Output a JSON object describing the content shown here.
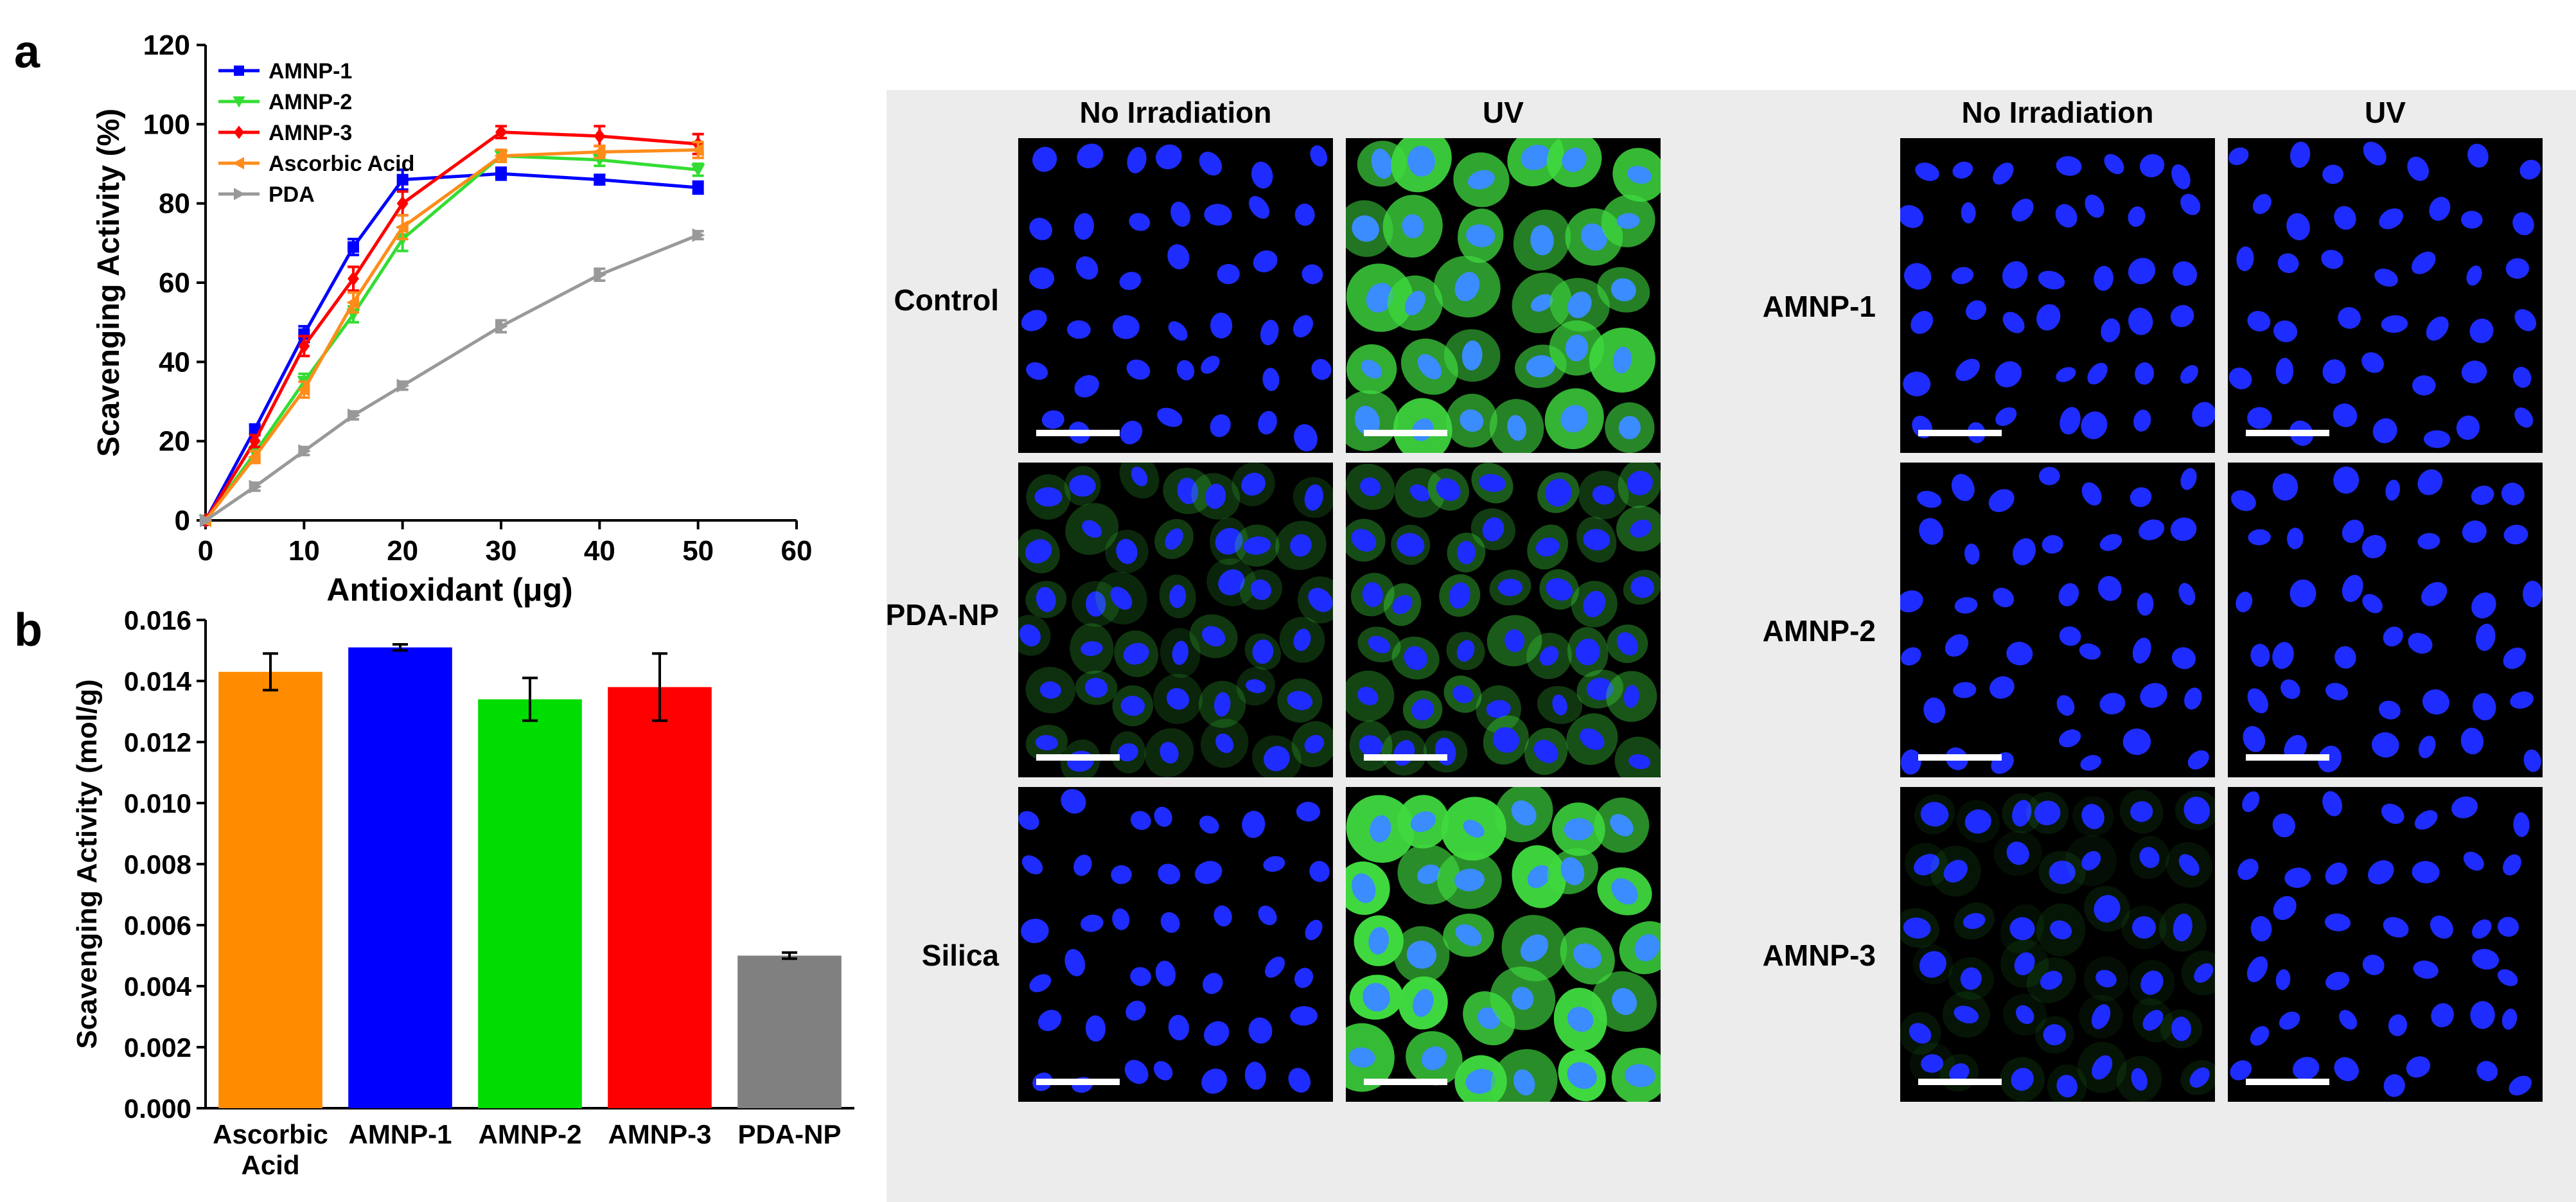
{
  "panel_a_label": "a",
  "panel_b_label": "b",
  "chart_data": [
    {
      "type": "line",
      "xlabel": "Antioxidant (μg)",
      "ylabel": "Scavenging Activity (%)",
      "xlim": [
        0,
        60
      ],
      "ylim": [
        0,
        120
      ],
      "xticks": [
        0,
        10,
        20,
        30,
        40,
        50,
        60
      ],
      "yticks": [
        0,
        20,
        40,
        60,
        80,
        100,
        120
      ],
      "legend_position": "top-left",
      "grid": false,
      "x": [
        0,
        5,
        10,
        15,
        20,
        30,
        40,
        50
      ],
      "series": [
        {
          "name": "AMNP-1",
          "color": "#0000ff",
          "marker": "square",
          "values": [
            0,
            23,
            47,
            69,
            86,
            87.5,
            86,
            84
          ],
          "errors": [
            0,
            1.2,
            2.0,
            2.0,
            2.5,
            1.5,
            1.2,
            1.5
          ]
        },
        {
          "name": "AMNP-2",
          "color": "#33dd33",
          "marker": "triangle-down",
          "values": [
            0,
            17,
            35,
            52,
            71,
            92,
            91,
            88.5
          ],
          "errors": [
            0,
            1.2,
            2.0,
            2.0,
            3.0,
            1.5,
            1.5,
            1.5
          ]
        },
        {
          "name": "AMNP-3",
          "color": "#ff0000",
          "marker": "diamond",
          "values": [
            0,
            20,
            44,
            61,
            80,
            98,
            97,
            95
          ],
          "errors": [
            0,
            1.5,
            2.5,
            3.0,
            3.0,
            1.5,
            2.5,
            2.5
          ]
        },
        {
          "name": "Ascorbic Acid",
          "color": "#ff8c1a",
          "marker": "triangle-left",
          "values": [
            0,
            16,
            33,
            55,
            74,
            92,
            93,
            93.5
          ],
          "errors": [
            0,
            1.5,
            2.0,
            2.5,
            3.0,
            1.5,
            1.5,
            2.0
          ]
        },
        {
          "name": "PDA",
          "color": "#999999",
          "marker": "triangle-right",
          "values": [
            0,
            8.5,
            17.5,
            26.5,
            34,
            49,
            62,
            72
          ],
          "errors": [
            0,
            1.0,
            1.0,
            1.0,
            1.0,
            1.5,
            1.5,
            1.0
          ]
        }
      ]
    },
    {
      "type": "bar",
      "ylabel": "Scavenging Activity (mol/g)",
      "ylim": [
        0,
        0.016
      ],
      "yticks": [
        "0.000",
        "0.002",
        "0.004",
        "0.006",
        "0.008",
        "0.010",
        "0.012",
        "0.014",
        "0.016"
      ],
      "categories": [
        [
          "Ascorbic",
          "Acid"
        ],
        [
          "AMNP-1"
        ],
        [
          "AMNP-2"
        ],
        [
          "AMNP-3"
        ],
        [
          "PDA-NP"
        ]
      ],
      "values": [
        0.0143,
        0.0151,
        0.0134,
        0.0138,
        0.005
      ],
      "errors": [
        0.0006,
        0.0001,
        0.0007,
        0.0011,
        0.0001
      ],
      "colors": [
        "#ff8c00",
        "#0000ff",
        "#00dd00",
        "#ff0000",
        "#808080"
      ]
    }
  ],
  "micrographs": {
    "left_group": {
      "headers": [
        "No Irradiation",
        "UV"
      ],
      "rows": [
        "Control",
        "PDA-NP",
        "Silica"
      ]
    },
    "right_group": {
      "headers": [
        "No Irradiation",
        "UV"
      ],
      "rows": [
        "AMNP-1",
        "AMNP-2",
        "AMNP-3"
      ]
    },
    "colors": {
      "nucleus": "#1e2cff",
      "cytoplasm_green": "#3fd93f",
      "background": "#000000"
    },
    "green_intensity": {
      "left_group": [
        [
          0.0,
          0.85
        ],
        [
          0.25,
          0.4
        ],
        [
          0.0,
          1.0
        ]
      ],
      "right_group": [
        [
          0.0,
          0.05
        ],
        [
          0.0,
          0.05
        ],
        [
          0.1,
          0.05
        ]
      ]
    }
  }
}
